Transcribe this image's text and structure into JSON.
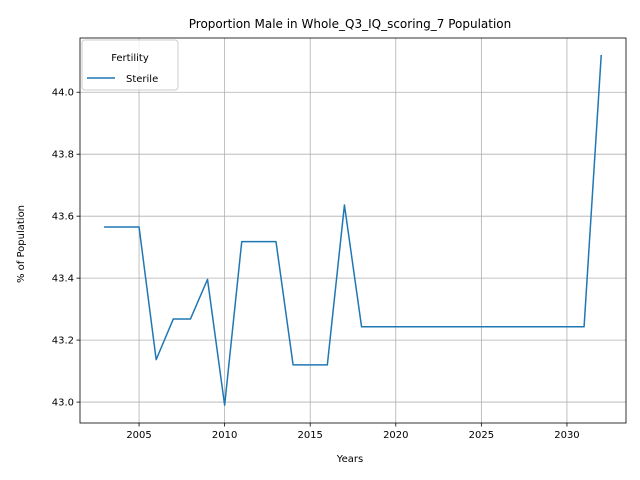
{
  "chart_data": {
    "type": "line",
    "title": "Proportion Male in Whole_Q3_IQ_scoring_7 Population",
    "xlabel": "Years",
    "ylabel": "% of Population",
    "xlim": [
      2001.55,
      2033.45
    ],
    "ylim": [
      42.9325,
      44.175
    ],
    "xticks": [
      2005,
      2010,
      2015,
      2020,
      2025,
      2030
    ],
    "yticks": [
      43.0,
      43.2,
      43.4,
      43.6,
      43.8,
      44.0
    ],
    "xtick_labels": [
      "2005",
      "2010",
      "2015",
      "2020",
      "2025",
      "2030"
    ],
    "ytick_labels": [
      "43.0",
      "43.2",
      "43.4",
      "43.6",
      "43.8",
      "44.0"
    ],
    "grid": true,
    "legend": {
      "title": "Fertility",
      "placement": "top-left"
    },
    "series": [
      {
        "name": "Sterile",
        "color": "#1f77b4",
        "x": [
          2003,
          2004,
          2005,
          2006,
          2007,
          2008,
          2009,
          2010,
          2011,
          2012,
          2013,
          2014,
          2015,
          2016,
          2017,
          2018,
          2019,
          2020,
          2021,
          2022,
          2023,
          2024,
          2025,
          2026,
          2027,
          2028,
          2029,
          2030,
          2031,
          2032
        ],
        "y": [
          43.565,
          43.565,
          43.565,
          43.137,
          43.268,
          43.268,
          43.396,
          42.99,
          43.518,
          43.518,
          43.518,
          43.12,
          43.12,
          43.12,
          43.636,
          43.243,
          43.243,
          43.243,
          43.243,
          43.243,
          43.243,
          43.243,
          43.243,
          43.243,
          43.243,
          43.243,
          43.243,
          43.243,
          43.243,
          44.118
        ]
      }
    ]
  }
}
